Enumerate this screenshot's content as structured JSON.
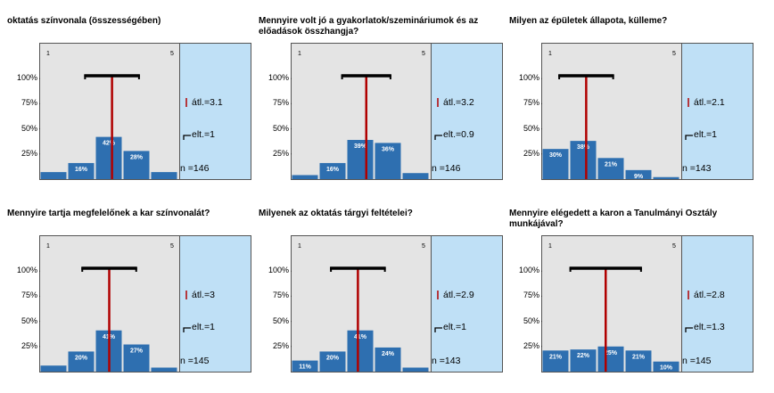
{
  "colors": {
    "bar": "#2e6fb0",
    "mean_line": "#b00000",
    "side_panel": "#bfe0f6",
    "plot_bg": "#e4e4e4",
    "bracket": "#000000"
  },
  "scale": {
    "min_label": "1",
    "max_label": "5",
    "y_ticks": [
      "100%",
      "75%",
      "50%",
      "25%"
    ]
  },
  "chart_data": [
    {
      "type": "bar",
      "title": "oktatás színvonala (összességében)",
      "categories": [
        "1",
        "2",
        "3",
        "4",
        "5"
      ],
      "values": [
        7,
        16,
        42,
        28,
        7
      ],
      "labels": [
        "",
        "16%",
        "42%",
        "28%",
        ""
      ],
      "mean": 3.1,
      "sd": 1,
      "n": 146,
      "mean_label": "átl.=3.1",
      "sd_label": "elt.=1",
      "n_label": "n =146",
      "ylim": [
        0,
        100
      ]
    },
    {
      "type": "bar",
      "title": "Mennyire volt jó a gyakorlatok/szemináriumok és az előadások összhangja?",
      "categories": [
        "1",
        "2",
        "3",
        "4",
        "5"
      ],
      "values": [
        4,
        16,
        39,
        36,
        6
      ],
      "labels": [
        "",
        "16%",
        "39%",
        "36%",
        ""
      ],
      "mean": 3.2,
      "sd": 0.9,
      "n": 146,
      "mean_label": "átl.=3.2",
      "sd_label": "elt.=0.9",
      "n_label": "n =146",
      "ylim": [
        0,
        100
      ]
    },
    {
      "type": "bar",
      "title": "Milyen az épületek állapota, külleme?",
      "categories": [
        "1",
        "2",
        "3",
        "4",
        "5"
      ],
      "values": [
        30,
        38,
        21,
        9,
        2
      ],
      "labels": [
        "30%",
        "38%",
        "21%",
        "9%",
        ""
      ],
      "mean": 2.1,
      "sd": 1,
      "n": 143,
      "mean_label": "átl.=2.1",
      "sd_label": "elt.=1",
      "n_label": "n =143",
      "ylim": [
        0,
        100
      ]
    },
    {
      "type": "bar",
      "title": "Mennyire tartja megfelelőnek a kar színvonalát?",
      "categories": [
        "1",
        "2",
        "3",
        "4",
        "5"
      ],
      "values": [
        6,
        20,
        41,
        27,
        4
      ],
      "labels": [
        "",
        "20%",
        "41%",
        "27%",
        ""
      ],
      "mean": 3,
      "sd": 1,
      "n": 145,
      "mean_label": "átl.=3",
      "sd_label": "elt.=1",
      "n_label": "n =145",
      "ylim": [
        0,
        100
      ]
    },
    {
      "type": "bar",
      "title": "Milyenek az oktatás tárgyi feltételei?",
      "categories": [
        "1",
        "2",
        "3",
        "4",
        "5"
      ],
      "values": [
        11,
        20,
        41,
        24,
        4
      ],
      "labels": [
        "11%",
        "20%",
        "41%",
        "24%",
        ""
      ],
      "mean": 2.9,
      "sd": 1,
      "n": 143,
      "mean_label": "átl.=2.9",
      "sd_label": "elt.=1",
      "n_label": "n =143",
      "ylim": [
        0,
        100
      ]
    },
    {
      "type": "bar",
      "title": "Mennyire elégedett a karon a Tanulmányi Osztály munkájával?",
      "categories": [
        "1",
        "2",
        "3",
        "4",
        "5"
      ],
      "values": [
        21,
        22,
        25,
        21,
        10
      ],
      "labels": [
        "21%",
        "22%",
        "25%",
        "21%",
        "10%"
      ],
      "mean": 2.8,
      "sd": 1.3,
      "n": 145,
      "mean_label": "átl.=2.8",
      "sd_label": "elt.=1.3",
      "n_label": "n =145",
      "ylim": [
        0,
        100
      ]
    }
  ]
}
